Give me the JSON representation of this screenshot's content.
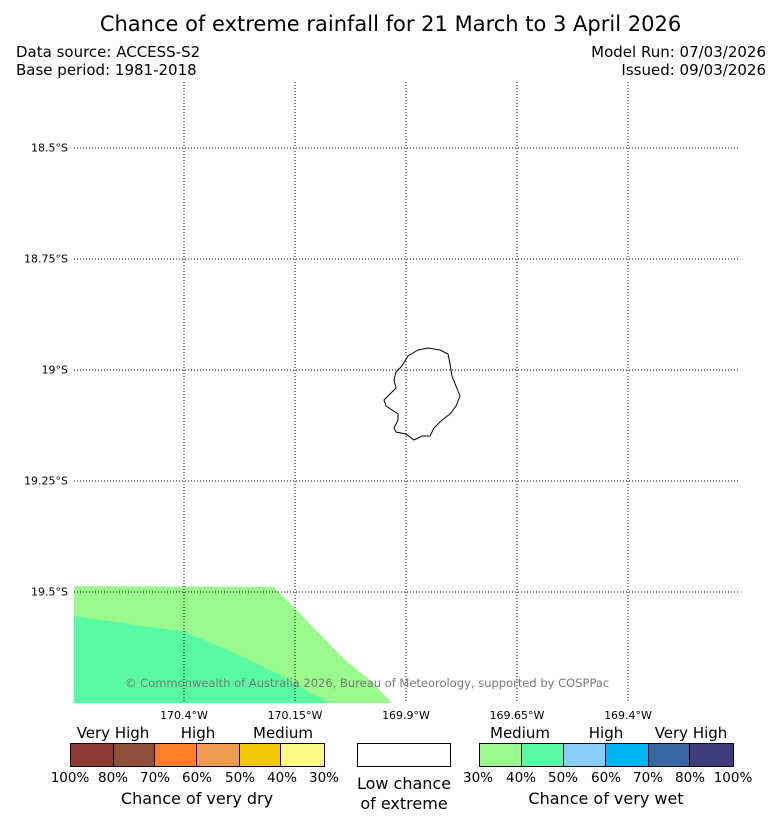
{
  "title": "Chance of extreme rainfall for 21 March to 3 April 2026",
  "data_source": "Data source: ACCESS-S2",
  "base_period": "Base period: 1981-2018",
  "model_run": "Model Run: 07/03/2026",
  "issued": "Issued: 09/03/2026",
  "lat_labels": [
    "18.5°S",
    "18.75°S",
    "19°S",
    "19.25°S",
    "19.5°S"
  ],
  "lon_labels": [
    "170.4°W",
    "170.15°W",
    "169.9°W",
    "169.65°W",
    "169.4°W"
  ],
  "copyright": "© Commonwealth of Australia 2026, Bureau of Meteorology, supported by COSPPac",
  "dry_legend": {
    "title": "Chance of very dry",
    "categories": [
      "Very High",
      "High",
      "Medium"
    ],
    "percent_labels": [
      "100%",
      "80%",
      "70%",
      "60%",
      "50%",
      "40%",
      "30%"
    ],
    "colors": [
      "#8e3a32",
      "#8f4f3d",
      "#fe7f28",
      "#ee9c50",
      "#f1c700",
      "#fefa88"
    ]
  },
  "neutral_legend": {
    "title_line1": "Low chance",
    "title_line2": "of extreme"
  },
  "wet_legend": {
    "title": "Chance of very wet",
    "categories": [
      "Medium",
      "High",
      "Very High"
    ],
    "percent_labels": [
      "30%",
      "40%",
      "50%",
      "60%",
      "70%",
      "80%",
      "100%"
    ],
    "colors": [
      "#99fb8c",
      "#57fca2",
      "#89cdfd",
      "#00b3f1",
      "#3966a4",
      "#3f3d7b"
    ]
  }
}
